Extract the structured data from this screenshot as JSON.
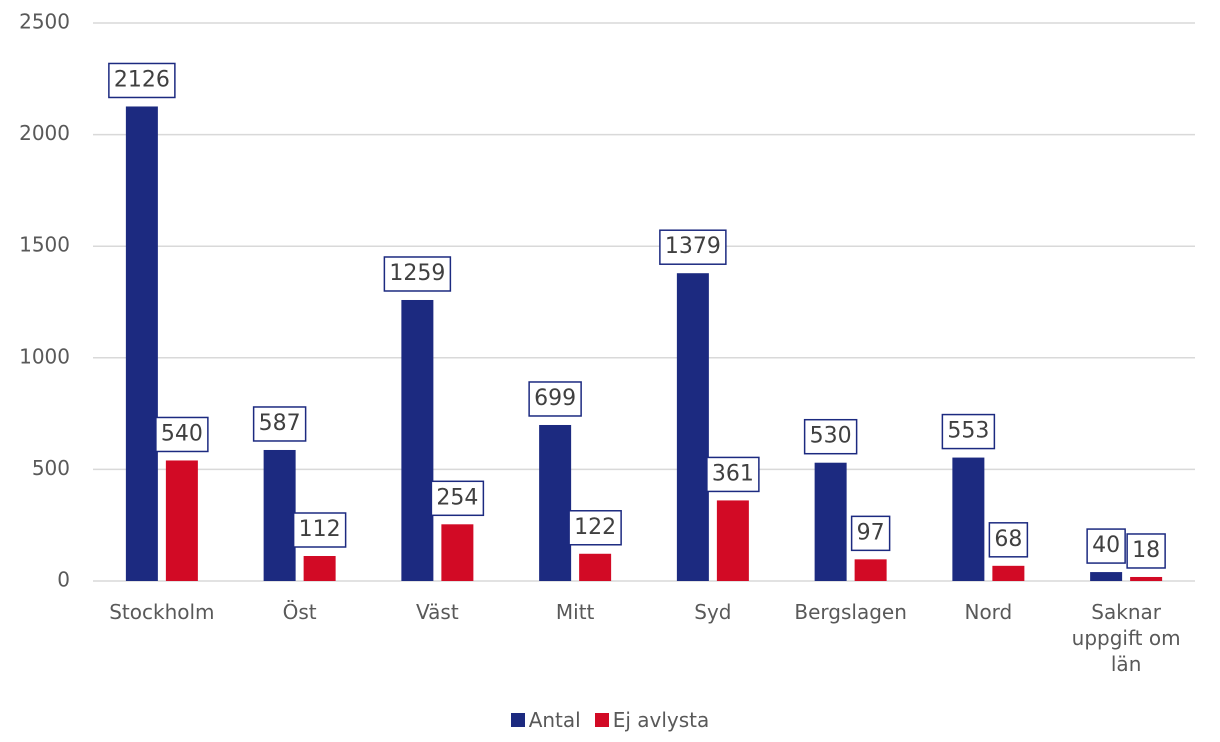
{
  "chart_data": {
    "type": "bar",
    "categories": [
      "Stockholm",
      "Öst",
      "Väst",
      "Mitt",
      "Syd",
      "Bergslagen",
      "Nord",
      "Saknar uppgift om län"
    ],
    "series": [
      {
        "name": "Antal",
        "color": "#1c2a80",
        "values": [
          2126,
          587,
          1259,
          699,
          1379,
          530,
          553,
          40
        ]
      },
      {
        "name": "Ej avlysta",
        "color": "#d20a25",
        "values": [
          540,
          112,
          254,
          122,
          361,
          97,
          68,
          18
        ]
      }
    ],
    "ylim": [
      0,
      2500
    ],
    "yticks": [
      0,
      500,
      1000,
      1500,
      2000,
      2500
    ],
    "grid": true,
    "legend": "bottom"
  }
}
